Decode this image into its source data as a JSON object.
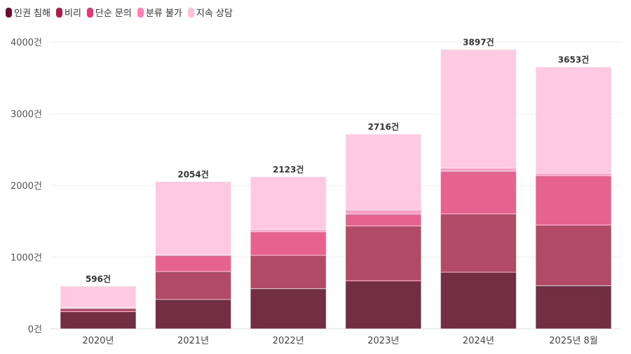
{
  "chart_data": {
    "type": "bar",
    "stacked": true,
    "categories": [
      "2020년",
      "2021년",
      "2022년",
      "2023년",
      "2024년",
      "2025년 8월"
    ],
    "series": [
      {
        "name": "인권 침해",
        "values": [
          240,
          410,
          560,
          670,
          790,
          600
        ],
        "color": "#722f43",
        "legend_color": "#6b0f2e"
      },
      {
        "name": "비리",
        "values": [
          45,
          390,
          465,
          765,
          813,
          847
        ],
        "color": "#b14a66",
        "legend_color": "#a8214b"
      },
      {
        "name": "단순 문의",
        "values": [
          10,
          225,
          330,
          166,
          595,
          690
        ],
        "color": "#e6638f",
        "legend_color": "#e03a78"
      },
      {
        "name": "분류 불가",
        "values": [
          5,
          10,
          30,
          58,
          46,
          32
        ],
        "color": "#fd9cc4",
        "legend_color": "#ff80b5"
      },
      {
        "name": "지속 상담",
        "values": [
          296,
          1019,
          738,
          1057,
          1653,
          1484
        ],
        "color": "#ffcae1",
        "legend_color": "#ffc0da"
      }
    ],
    "totals": [
      "596건",
      "2054건",
      "2123건",
      "2716건",
      "3897건",
      "3653건"
    ],
    "yticks": [
      0,
      1000,
      2000,
      3000,
      4000
    ],
    "ytick_labels": [
      "0건",
      "1000건",
      "2000건",
      "3000건",
      "4000건"
    ],
    "ylim": [
      0,
      4000
    ],
    "grid": true,
    "legend_position": "top-left"
  }
}
